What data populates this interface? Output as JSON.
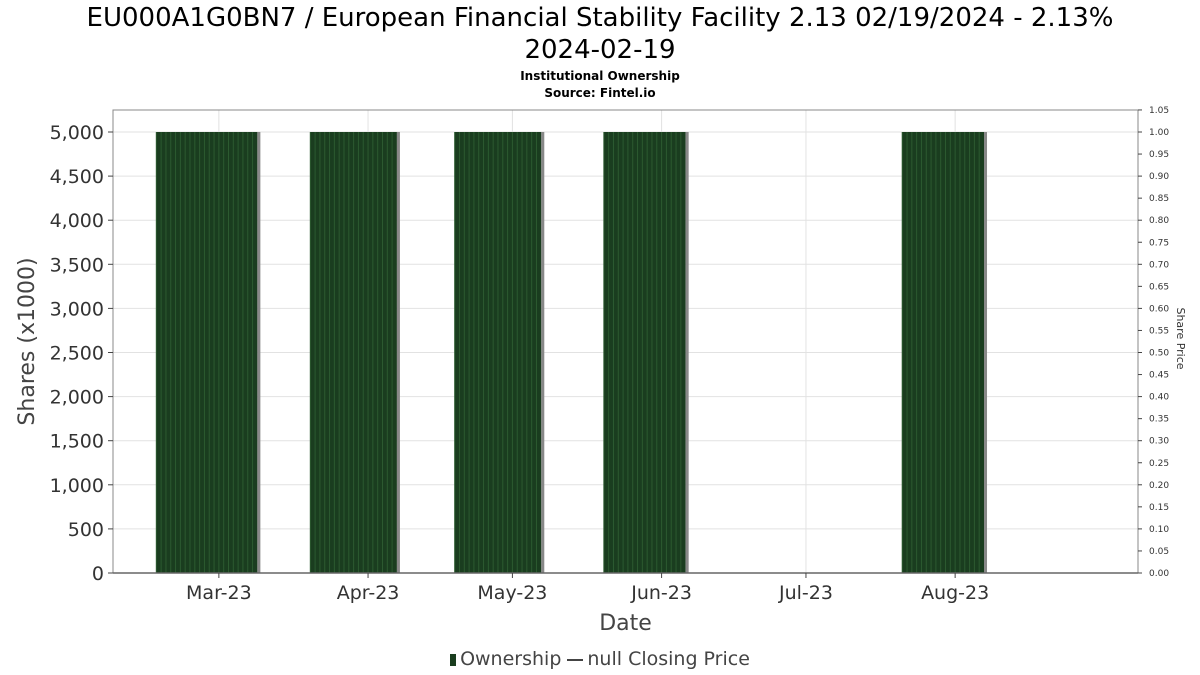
{
  "title_line1": "EU000A1G0BN7 / European Financial Stability Facility 2.13 02/19/2024 - 2.13%",
  "title_line2": "2024-02-19",
  "subtitle1": "Institutional Ownership",
  "subtitle2": "Source: Fintel.io",
  "legend": {
    "ownership": "Ownership",
    "price": "null Closing Price"
  },
  "colors": {
    "bar": "#1a3d1f",
    "bar_stripe": "#2c5a30",
    "bar_edge": "#888888",
    "grid": "#e2e2e2"
  },
  "chart_data": {
    "type": "bar",
    "xlabel": "Date",
    "ylabel": "Shares (x1000)",
    "y2label": "Share Price",
    "ylim": [
      0,
      5250
    ],
    "y2lim": [
      0,
      1.05
    ],
    "yticks": [
      0,
      500,
      1000,
      1500,
      2000,
      2500,
      3000,
      3500,
      4000,
      4500,
      5000
    ],
    "ytick_labels": [
      "0",
      "500",
      "1,000",
      "1,500",
      "2,000",
      "2,500",
      "3,000",
      "3,500",
      "4,000",
      "4,500",
      "5,000"
    ],
    "y2ticks": [
      "0.00",
      "0.05",
      "0.10",
      "0.15",
      "0.20",
      "0.25",
      "0.30",
      "0.35",
      "0.40",
      "0.45",
      "0.50",
      "0.55",
      "0.60",
      "0.65",
      "0.70",
      "0.75",
      "0.80",
      "0.85",
      "0.90",
      "0.95",
      "1.00",
      "1.05"
    ],
    "xlim": [
      "2023-02-07",
      "2023-09-08"
    ],
    "xticks": [
      {
        "date": "2023-03-01",
        "label": "Mar-23"
      },
      {
        "date": "2023-04-01",
        "label": "Apr-23"
      },
      {
        "date": "2023-05-01",
        "label": "May-23"
      },
      {
        "date": "2023-06-01",
        "label": "Jun-23"
      },
      {
        "date": "2023-07-01",
        "label": "Jul-23"
      },
      {
        "date": "2023-08-01",
        "label": "Aug-23"
      }
    ],
    "series": [
      {
        "name": "Ownership",
        "bars": [
          {
            "start": "2023-02-16",
            "end": "2023-03-09",
            "value": 5000
          },
          {
            "start": "2023-03-20",
            "end": "2023-04-07",
            "value": 5000
          },
          {
            "start": "2023-04-19",
            "end": "2023-05-07",
            "value": 5000
          },
          {
            "start": "2023-05-20",
            "end": "2023-06-06",
            "value": 5000
          },
          {
            "start": "2023-07-21",
            "end": "2023-08-07",
            "value": 5000
          }
        ]
      }
    ],
    "grid": true,
    "legend_position": "bottom"
  }
}
